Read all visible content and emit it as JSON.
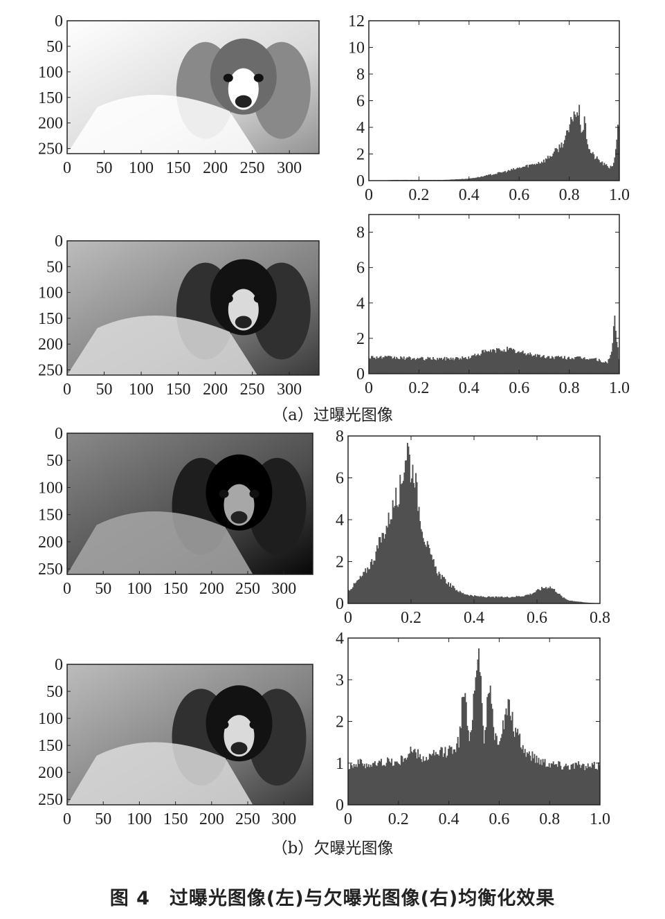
{
  "figure": {
    "subcaption_a": "（a）过曝光图像",
    "subcaption_b": "（b）欠曝光图像",
    "title": "图 4　过曝光图像(左)与欠曝光图像(右)均衡化效果"
  },
  "colors": {
    "bar": "#505050",
    "axis": "#222222"
  },
  "chart_data": [
    {
      "type": "image",
      "panel": "a-left-top",
      "xticks": [
        "0",
        "50",
        "100",
        "150",
        "200",
        "250",
        "300"
      ],
      "yticks": [
        "0",
        "50",
        "100",
        "150",
        "200",
        "250"
      ],
      "xlim": [
        0,
        340
      ],
      "ylim": [
        0,
        260
      ],
      "image": {
        "tone": "overexposed",
        "brightness": 0.85
      }
    },
    {
      "type": "bar",
      "panel": "a-right-top",
      "xticks": [
        "0",
        "0.2",
        "0.4",
        "0.6",
        "0.8",
        "1.0"
      ],
      "yticks": [
        "0",
        "2",
        "4",
        "6",
        "8",
        "10",
        "12"
      ],
      "xlim": [
        0,
        1.0
      ],
      "ylim": [
        0,
        12
      ],
      "x": [
        0.0,
        0.05,
        0.1,
        0.15,
        0.2,
        0.25,
        0.3,
        0.35,
        0.4,
        0.45,
        0.5,
        0.55,
        0.6,
        0.65,
        0.7,
        0.72,
        0.74,
        0.76,
        0.78,
        0.8,
        0.81,
        0.82,
        0.83,
        0.84,
        0.85,
        0.86,
        0.87,
        0.88,
        0.9,
        0.92,
        0.94,
        0.96,
        0.98,
        0.99,
        1.0
      ],
      "values": [
        0.0,
        0.0,
        0.05,
        0.05,
        0.05,
        0.05,
        0.05,
        0.1,
        0.15,
        0.3,
        0.5,
        0.7,
        0.95,
        1.2,
        1.5,
        1.8,
        2.1,
        2.5,
        3.0,
        3.8,
        4.6,
        5.3,
        4.8,
        5.1,
        3.6,
        4.4,
        3.2,
        2.3,
        1.8,
        1.5,
        1.2,
        1.0,
        1.3,
        3.4,
        4.6
      ]
    },
    {
      "type": "image",
      "panel": "a-left-bottom",
      "xticks": [
        "0",
        "50",
        "100",
        "150",
        "200",
        "250",
        "300"
      ],
      "yticks": [
        "0",
        "50",
        "100",
        "150",
        "200",
        "250"
      ],
      "xlim": [
        0,
        340
      ],
      "ylim": [
        0,
        260
      ],
      "image": {
        "tone": "equalized",
        "brightness": 0.5
      }
    },
    {
      "type": "bar",
      "panel": "a-right-bottom",
      "xticks": [
        "0",
        "0.2",
        "0.4",
        "0.6",
        "0.8",
        "1.0"
      ],
      "yticks": [
        "0",
        "2",
        "4",
        "6",
        "8"
      ],
      "xlim": [
        0,
        1.0
      ],
      "ylim": [
        0,
        9
      ],
      "x": [
        0.0,
        0.1,
        0.2,
        0.3,
        0.4,
        0.45,
        0.5,
        0.55,
        0.6,
        0.65,
        0.7,
        0.8,
        0.9,
        0.95,
        0.97,
        0.98,
        1.0
      ],
      "values": [
        0.95,
        0.9,
        0.85,
        0.85,
        0.9,
        1.2,
        1.3,
        1.4,
        1.2,
        1.1,
        0.95,
        0.9,
        0.85,
        0.6,
        1.2,
        3.3,
        0.5
      ]
    },
    {
      "type": "image",
      "panel": "b-left-top",
      "xticks": [
        "0",
        "50",
        "100",
        "150",
        "200",
        "250",
        "300"
      ],
      "yticks": [
        "0",
        "50",
        "100",
        "150",
        "200",
        "250"
      ],
      "xlim": [
        0,
        340
      ],
      "ylim": [
        0,
        260
      ],
      "image": {
        "tone": "underexposed",
        "brightness": 0.3
      }
    },
    {
      "type": "bar",
      "panel": "b-right-top",
      "xticks": [
        "0",
        "0.2",
        "0.4",
        "0.6",
        "0.8"
      ],
      "yticks": [
        "0",
        "2",
        "4",
        "6",
        "8"
      ],
      "xlim": [
        0,
        0.8
      ],
      "ylim": [
        0,
        8
      ],
      "x": [
        0.0,
        0.02,
        0.05,
        0.08,
        0.1,
        0.12,
        0.14,
        0.16,
        0.17,
        0.18,
        0.19,
        0.2,
        0.21,
        0.22,
        0.24,
        0.26,
        0.28,
        0.3,
        0.33,
        0.36,
        0.4,
        0.45,
        0.5,
        0.55,
        0.58,
        0.6,
        0.62,
        0.64,
        0.66,
        0.68,
        0.7,
        0.75,
        0.8
      ],
      "values": [
        0.6,
        0.9,
        1.4,
        2.1,
        2.9,
        3.6,
        4.5,
        5.3,
        5.8,
        6.9,
        7.6,
        6.2,
        6.5,
        5.0,
        3.3,
        2.3,
        1.6,
        1.2,
        0.8,
        0.5,
        0.35,
        0.3,
        0.3,
        0.35,
        0.45,
        0.6,
        0.75,
        0.8,
        0.6,
        0.3,
        0.15,
        0.05,
        0.0
      ]
    },
    {
      "type": "image",
      "panel": "b-left-bottom",
      "xticks": [
        "0",
        "50",
        "100",
        "150",
        "200",
        "250",
        "300"
      ],
      "yticks": [
        "0",
        "50",
        "100",
        "150",
        "200",
        "250"
      ],
      "xlim": [
        0,
        340
      ],
      "ylim": [
        0,
        260
      ],
      "image": {
        "tone": "equalized",
        "brightness": 0.5
      }
    },
    {
      "type": "bar",
      "panel": "b-right-bottom",
      "xticks": [
        "0",
        "0.2",
        "0.4",
        "0.6",
        "0.8",
        "1.0"
      ],
      "yticks": [
        "0",
        "1",
        "2",
        "3",
        "4"
      ],
      "xlim": [
        0,
        1.0
      ],
      "ylim": [
        0,
        4
      ],
      "x": [
        0.0,
        0.05,
        0.1,
        0.15,
        0.2,
        0.25,
        0.3,
        0.35,
        0.4,
        0.44,
        0.46,
        0.48,
        0.5,
        0.52,
        0.54,
        0.56,
        0.58,
        0.6,
        0.62,
        0.64,
        0.66,
        0.7,
        0.75,
        0.8,
        0.85,
        0.9,
        0.95,
        1.0
      ],
      "values": [
        0.95,
        1.0,
        0.95,
        1.05,
        1.0,
        1.3,
        1.1,
        1.2,
        1.3,
        1.5,
        2.9,
        1.4,
        2.7,
        3.85,
        1.5,
        2.9,
        1.6,
        1.6,
        2.0,
        2.4,
        1.8,
        1.3,
        1.1,
        1.0,
        0.95,
        0.95,
        0.9,
        0.95
      ]
    }
  ]
}
